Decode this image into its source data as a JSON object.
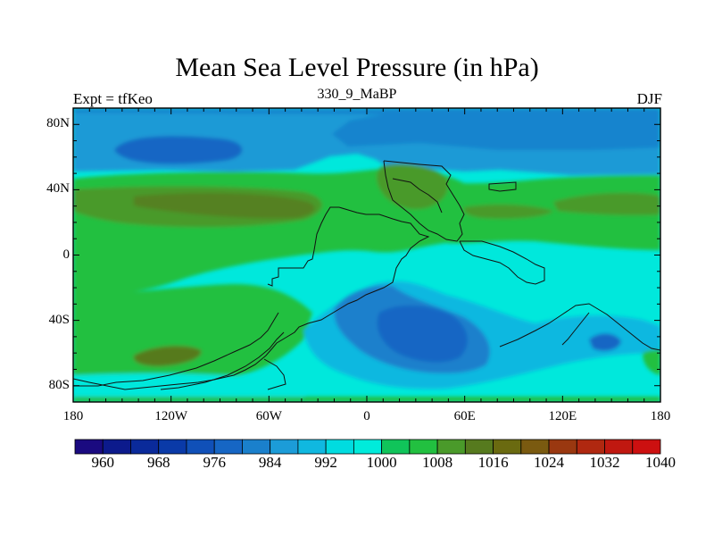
{
  "figure": {
    "title": "Mean Sea Level Pressure (in hPa)",
    "left_string": "Expt = tfKeo",
    "center_string": "330_9_MaBP",
    "right_string": "DJF"
  },
  "map": {
    "lon_range": [
      -180,
      180
    ],
    "lat_range": [
      -90,
      90
    ],
    "lat_ticks": [
      {
        "lat": 80,
        "label": "80N"
      },
      {
        "lat": 40,
        "label": "40N"
      },
      {
        "lat": 0,
        "label": "0"
      },
      {
        "lat": -40,
        "label": "40S"
      },
      {
        "lat": -80,
        "label": "80S"
      }
    ],
    "lon_ticks": [
      {
        "lon": -180,
        "label": "180"
      },
      {
        "lon": -120,
        "label": "120W"
      },
      {
        "lon": -60,
        "label": "60W"
      },
      {
        "lon": 0,
        "label": "0"
      },
      {
        "lon": 60,
        "label": "60E"
      },
      {
        "lon": 120,
        "label": "120E"
      },
      {
        "lon": 180,
        "label": "180"
      }
    ]
  },
  "colorbar": {
    "levels": [
      960,
      964,
      968,
      972,
      976,
      980,
      984,
      988,
      992,
      996,
      1000,
      1004,
      1008,
      1012,
      1016,
      1020,
      1024,
      1028,
      1032,
      1036,
      1040
    ],
    "labels": [
      "960",
      "968",
      "976",
      "984",
      "992",
      "1000",
      "1008",
      "1016",
      "1024",
      "1032",
      "1040"
    ],
    "colors": [
      "#1a0a80",
      "#0c1a8c",
      "#0a2a9a",
      "#0a3aa8",
      "#1050b8",
      "#1666c4",
      "#1a80cc",
      "#1c9cd8",
      "#10b8e0",
      "#00dce0",
      "#00ebdb",
      "#10c45a",
      "#22c040",
      "#4a9a2a",
      "#567a1e",
      "#6a6a10",
      "#7a5a10",
      "#9a3810",
      "#b02810",
      "#c01810",
      "#cc1010"
    ]
  }
}
